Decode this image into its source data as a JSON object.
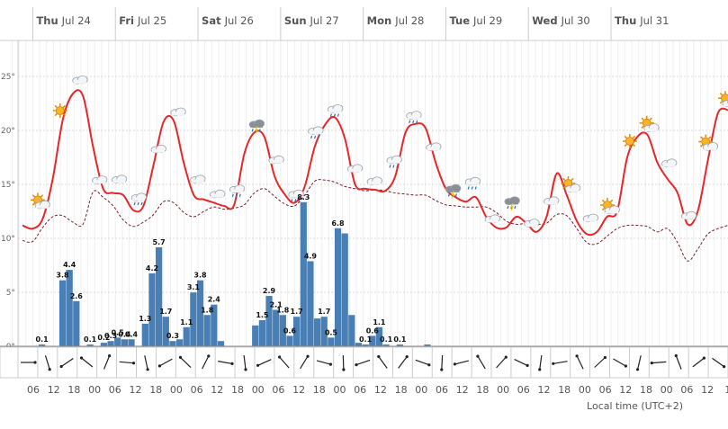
{
  "chart_data": {
    "type": "meteogram",
    "title": "",
    "xlabel": "Local time (UTC+2)",
    "days": [
      "Thu",
      "Fri",
      "Sat",
      "Sun",
      "Mon",
      "Tue",
      "Wed",
      "Thu"
    ],
    "day_dates": [
      "Jul 24",
      "Jul 25",
      "Jul 26",
      "Jul 27",
      "Jul 28",
      "Jul 29",
      "Jul 30",
      "Jul 31"
    ],
    "x_tick_labels": [
      "06",
      "12",
      "18",
      "00",
      "06",
      "12",
      "18",
      "00",
      "06",
      "12",
      "18",
      "00",
      "06",
      "12",
      "18",
      "00",
      "06",
      "12",
      "18",
      "00",
      "06",
      "12",
      "18",
      "00",
      "06",
      "12",
      "18",
      "00",
      "06",
      "12",
      "18",
      "00",
      "06",
      "12",
      "1"
    ],
    "y_axis": {
      "unit": "°",
      "range": [
        0,
        27
      ],
      "ticks": [
        0,
        5,
        10,
        15,
        20,
        25
      ]
    },
    "precip_bars": [
      0,
      0,
      0,
      0.1,
      0,
      0,
      3.8,
      4.4,
      2.6,
      0,
      0.1,
      0,
      0.2,
      0.3,
      0.5,
      0.4,
      0.4,
      0,
      1.3,
      4.2,
      5.7,
      1.7,
      0.3,
      0.4,
      1.1,
      3.1,
      3.8,
      1.8,
      2.4,
      0.3,
      0,
      0,
      0,
      0,
      1.2,
      1.5,
      2.9,
      2.1,
      1.8,
      0.6,
      1.7,
      8.3,
      4.9,
      1.6,
      1.7,
      0.5,
      6.8,
      6.5,
      1.8,
      0.2,
      0.1,
      0.6,
      1.1,
      0.1,
      0,
      0.1,
      0,
      0,
      0,
      0.1,
      0,
      0,
      0,
      0,
      0,
      0,
      0
    ],
    "precip_labels": [
      "0.1",
      "3.8",
      "4.4",
      "2.6",
      "0.1",
      "0.3",
      "0.5",
      "0.4",
      "1.3",
      "4.2",
      "5.7",
      "1.7",
      "0.4",
      "1.1",
      "3.1",
      "3.8",
      "1.8",
      "2.4",
      "0.3",
      "1.5",
      "2.9",
      "2.1",
      "0.6",
      "1.7",
      "8.3",
      "4.9",
      "1.7",
      "0.5",
      "6.8",
      "1.8",
      "0.2",
      "0.6",
      "1.1",
      "0.1",
      "0.1",
      "0.1"
    ],
    "temperature": [
      11.2,
      10.9,
      11.8,
      15.5,
      21.0,
      23.4,
      23.2,
      18.5,
      14.6,
      14.2,
      14.0,
      12.6,
      13.0,
      16.8,
      20.8,
      20.9,
      17.0,
      14.0,
      13.6,
      13.3,
      13.0,
      13.1,
      17.8,
      19.8,
      19.4,
      15.8,
      14.1,
      13.3,
      14.8,
      18.5,
      20.5,
      21.2,
      19.2,
      15.0,
      14.6,
      14.5,
      14.4,
      15.8,
      19.8,
      20.6,
      20.2,
      17.0,
      14.6,
      13.8,
      13.4,
      13.8,
      12.0,
      11.0,
      11.0,
      12.0,
      11.4,
      10.6,
      12.0,
      16.0,
      14.0,
      11.6,
      10.4,
      10.6,
      12.0,
      12.5,
      17.5,
      19.4,
      19.6,
      17.0,
      15.5,
      14.2,
      11.3,
      12.5,
      17.2,
      21.6,
      21.9
    ],
    "dew_point": [
      9.8,
      9.7,
      11.0,
      12.0,
      12.1,
      11.5,
      11.3,
      14.3,
      13.8,
      13.0,
      11.7,
      11.1,
      11.5,
      12.2,
      13.4,
      13.3,
      12.4,
      12.0,
      12.5,
      12.9,
      12.7,
      12.8,
      13.1,
      14.2,
      14.6,
      13.9,
      13.2,
      13.0,
      14.0,
      15.3,
      15.4,
      15.2,
      14.8,
      14.6,
      14.4,
      14.5,
      14.4,
      14.2,
      14.1,
      14.0,
      14.0,
      13.5,
      13.1,
      13.0,
      12.9,
      12.9,
      12.9,
      12.4,
      11.6,
      11.3,
      11.4,
      11.3,
      11.4,
      12.2,
      12.1,
      10.9,
      9.6,
      9.5,
      10.2,
      10.9,
      11.2,
      11.2,
      11.1,
      10.6,
      10.9,
      9.6,
      7.9,
      9.0,
      10.4,
      10.9,
      11.2
    ],
    "weather_icons": [
      "sun-cloud-icon",
      "sun-icon",
      "cloud-icon",
      "cloud-icon",
      "cloud-icon",
      "rain-icon",
      "cloud-icon",
      "cloud-icon",
      "cloud-icon",
      "cloud-icon",
      "rain-icon",
      "thunder-rain-icon",
      "cloud-icon",
      "rain-icon",
      "rain-icon",
      "rain-icon",
      "cloud-icon",
      "cloud-icon",
      "rain-icon",
      "rain-icon",
      "cloud-icon",
      "thunder-rain-icon",
      "rain-icon",
      "cloud-icon",
      "thunder-rain-icon",
      "cloud-icon",
      "cloud-icon",
      "sun-cloud-icon",
      "cloud-icon",
      "sun-cloud-icon",
      "sun-icon",
      "sun-cloud-icon",
      "cloud-icon",
      "cloud-icon",
      "sun-cloud-icon",
      "sun-cloud-icon"
    ],
    "wind_arrows": 36,
    "colors": {
      "bars": "#4a7fb5",
      "temperature": "#e8262a",
      "dew_point": "#7a1f2a",
      "grid": "#e4e4e4",
      "axis": "#999999"
    }
  }
}
